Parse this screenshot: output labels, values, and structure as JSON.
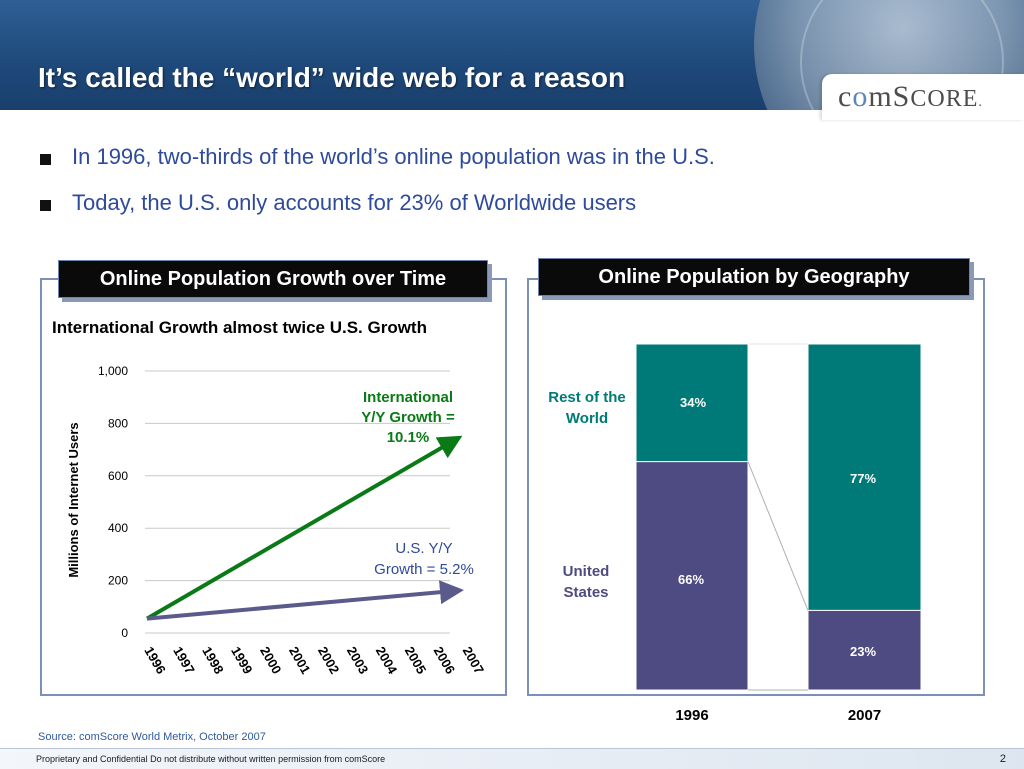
{
  "header": {
    "title": "It’s called the “world” wide web for a reason",
    "logo": "comScore"
  },
  "bullets": [
    "In 1996, two-thirds of the world’s online population was in the U.S.",
    "Today, the U.S. only accounts for 23% of Worldwide users"
  ],
  "panels": {
    "left_title": "Online Population Growth over Time",
    "right_title": "Online Population by Geography"
  },
  "colors": {
    "header_blue": "#1f4a7c",
    "international_green": "#0a7a16",
    "us_purple": "#5a5a8c",
    "rest_teal": "#007a78",
    "us_bar": "#4e4b82"
  },
  "chart_data": [
    {
      "type": "line",
      "title": "International Growth almost twice U.S. Growth",
      "ylabel": "Millions of Internet Users",
      "xlabel": "",
      "x": [
        "1996",
        "1997",
        "1998",
        "1999",
        "2000",
        "2001",
        "2002",
        "2003",
        "2004",
        "2005",
        "2006",
        "2007"
      ],
      "ylim": [
        0,
        1000
      ],
      "yticks": [
        "0",
        "200",
        "400",
        "600",
        "800",
        "1,000"
      ],
      "ytick_values": [
        0,
        200,
        400,
        600,
        800,
        1000
      ],
      "grid": true,
      "series": [
        {
          "name": "International",
          "start": 55,
          "end": 730,
          "color": "#0a7a16"
        },
        {
          "name": "U.S.",
          "start": 55,
          "end": 160,
          "color": "#5a5a8c"
        }
      ],
      "annotations": [
        {
          "lines": [
            "International",
            "Y/Y Growth =",
            "10.1%"
          ],
          "color": "#0a7a16"
        },
        {
          "lines": [
            "U.S.  Y/Y",
            "Growth = 5.2%"
          ],
          "color": "#2e4a9b"
        }
      ]
    },
    {
      "type": "bar",
      "stacked": true,
      "categories": [
        "1996",
        "2007"
      ],
      "series": [
        {
          "name": "United States",
          "values": [
            66,
            23
          ],
          "labels": [
            "66%",
            "23%"
          ],
          "color": "#4e4b82"
        },
        {
          "name": "Rest of the World",
          "values": [
            34,
            77
          ],
          "labels": [
            "34%",
            "77%"
          ],
          "color": "#007a78"
        }
      ],
      "legend_labels": {
        "rest": [
          "Rest of the",
          "World"
        ],
        "us": [
          "United",
          "States"
        ]
      },
      "ylim": [
        0,
        100
      ]
    }
  ],
  "source": "Source:  comScore World Metrix, October 2007",
  "footer": {
    "text": "Proprietary and Confidential Do not distribute without written permission from comScore",
    "page": "2"
  }
}
